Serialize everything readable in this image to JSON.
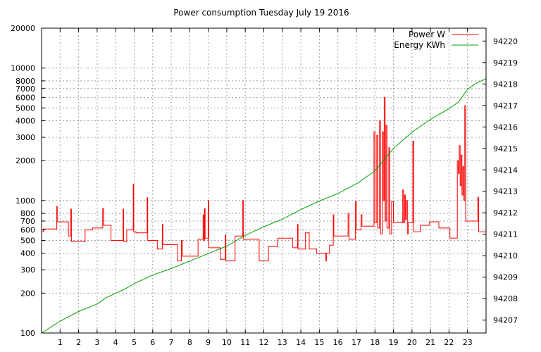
{
  "chart_data": {
    "type": "line",
    "title": "Power consumption Tuesday July 19 2016",
    "xlabel": "",
    "ylabel": "",
    "y2label": "",
    "grid": true,
    "legend_position": "top-right",
    "x_range": [
      0,
      24
    ],
    "x_ticks": [
      1,
      2,
      3,
      4,
      5,
      6,
      7,
      8,
      9,
      10,
      11,
      12,
      13,
      14,
      15,
      16,
      17,
      18,
      19,
      20,
      21,
      22,
      23
    ],
    "y_scale": "log",
    "y_range": [
      100,
      20000
    ],
    "y_ticks": [
      100,
      200,
      300,
      400,
      500,
      600,
      700,
      800,
      1000,
      2000,
      3000,
      4000,
      5000,
      6000,
      7000,
      8000,
      10000,
      20000
    ],
    "y2_range": [
      94206.4,
      94220.6
    ],
    "y2_ticks": [
      94207,
      94208,
      94209,
      94210,
      94211,
      94212,
      94213,
      94214,
      94215,
      94216,
      94217,
      94218,
      94219,
      94220
    ],
    "series": [
      {
        "name": "Power W",
        "color": "#ff0000",
        "axis": "y",
        "step": true,
        "points": [
          [
            0,
            580
          ],
          [
            0.1,
            610
          ],
          [
            0.8,
            610
          ],
          [
            0.82,
            900
          ],
          [
            0.85,
            690
          ],
          [
            1.4,
            690
          ],
          [
            1.45,
            540
          ],
          [
            1.55,
            540
          ],
          [
            1.58,
            860
          ],
          [
            1.62,
            490
          ],
          [
            2.3,
            490
          ],
          [
            2.35,
            600
          ],
          [
            2.7,
            600
          ],
          [
            2.75,
            620
          ],
          [
            3.25,
            620
          ],
          [
            3.3,
            870
          ],
          [
            3.35,
            650
          ],
          [
            3.7,
            650
          ],
          [
            3.75,
            500
          ],
          [
            4.35,
            500
          ],
          [
            4.4,
            860
          ],
          [
            4.43,
            490
          ],
          [
            4.55,
            490
          ],
          [
            4.6,
            600
          ],
          [
            4.9,
            600
          ],
          [
            4.95,
            1330
          ],
          [
            4.98,
            580
          ],
          [
            5.05,
            580
          ],
          [
            5.1,
            570
          ],
          [
            5.65,
            570
          ],
          [
            5.7,
            1050
          ],
          [
            5.73,
            500
          ],
          [
            6.2,
            500
          ],
          [
            6.25,
            430
          ],
          [
            6.5,
            430
          ],
          [
            6.52,
            660
          ],
          [
            6.55,
            465
          ],
          [
            7.3,
            465
          ],
          [
            7.35,
            350
          ],
          [
            7.5,
            350
          ],
          [
            7.55,
            500
          ],
          [
            7.6,
            380
          ],
          [
            8.4,
            380
          ],
          [
            8.45,
            510
          ],
          [
            8.7,
            510
          ],
          [
            8.72,
            780
          ],
          [
            8.75,
            500
          ],
          [
            8.8,
            870
          ],
          [
            8.83,
            520
          ],
          [
            8.9,
            520
          ],
          [
            9.0,
            1000
          ],
          [
            9.03,
            440
          ],
          [
            9.6,
            440
          ],
          [
            9.65,
            360
          ],
          [
            9.9,
            360
          ],
          [
            9.92,
            550
          ],
          [
            9.95,
            350
          ],
          [
            10.4,
            350
          ],
          [
            10.45,
            540
          ],
          [
            10.8,
            540
          ],
          [
            10.85,
            1000
          ],
          [
            10.9,
            510
          ],
          [
            11.7,
            510
          ],
          [
            11.75,
            350
          ],
          [
            12.2,
            350
          ],
          [
            12.25,
            450
          ],
          [
            12.7,
            450
          ],
          [
            12.75,
            520
          ],
          [
            13.5,
            520
          ],
          [
            13.55,
            440
          ],
          [
            13.8,
            440
          ],
          [
            13.82,
            660
          ],
          [
            13.85,
            430
          ],
          [
            14.2,
            430
          ],
          [
            14.25,
            570
          ],
          [
            14.4,
            570
          ],
          [
            14.45,
            430
          ],
          [
            14.8,
            430
          ],
          [
            14.85,
            400
          ],
          [
            15.3,
            400
          ],
          [
            15.35,
            350
          ],
          [
            15.38,
            400
          ],
          [
            15.5,
            400
          ],
          [
            15.55,
            460
          ],
          [
            15.7,
            460
          ],
          [
            15.75,
            780
          ],
          [
            15.78,
            540
          ],
          [
            16.5,
            540
          ],
          [
            16.55,
            800
          ],
          [
            16.6,
            510
          ],
          [
            16.9,
            510
          ],
          [
            16.95,
            980
          ],
          [
            17.0,
            600
          ],
          [
            17.2,
            600
          ],
          [
            17.25,
            780
          ],
          [
            17.3,
            640
          ],
          [
            17.9,
            640
          ],
          [
            17.95,
            3300
          ],
          [
            18.0,
            680
          ],
          [
            18.1,
            3100
          ],
          [
            18.15,
            620
          ],
          [
            18.25,
            4000
          ],
          [
            18.3,
            560
          ],
          [
            18.4,
            3300
          ],
          [
            18.45,
            1000
          ],
          [
            18.5,
            6000
          ],
          [
            18.55,
            700
          ],
          [
            18.6,
            3700
          ],
          [
            18.65,
            620
          ],
          [
            18.75,
            2500
          ],
          [
            18.8,
            560
          ],
          [
            18.9,
            980
          ],
          [
            19.0,
            680
          ],
          [
            19.45,
            680
          ],
          [
            19.5,
            1200
          ],
          [
            19.55,
            680
          ],
          [
            19.6,
            1100
          ],
          [
            19.65,
            720
          ],
          [
            19.7,
            1000
          ],
          [
            19.75,
            560
          ],
          [
            19.8,
            680
          ],
          [
            20.0,
            680
          ],
          [
            20.05,
            2800
          ],
          [
            20.1,
            580
          ],
          [
            20.4,
            580
          ],
          [
            20.45,
            650
          ],
          [
            20.9,
            650
          ],
          [
            20.95,
            690
          ],
          [
            21.4,
            690
          ],
          [
            21.45,
            620
          ],
          [
            22.0,
            620
          ],
          [
            22.05,
            520
          ],
          [
            22.4,
            520
          ],
          [
            22.45,
            2000
          ],
          [
            22.5,
            1600
          ],
          [
            22.55,
            2600
          ],
          [
            22.6,
            1300
          ],
          [
            22.65,
            2200
          ],
          [
            22.7,
            1100
          ],
          [
            22.75,
            1800
          ],
          [
            22.8,
            1000
          ],
          [
            22.85,
            5200
          ],
          [
            22.9,
            700
          ],
          [
            23.5,
            700
          ],
          [
            23.55,
            1050
          ],
          [
            23.6,
            580
          ],
          [
            24,
            580
          ]
        ]
      },
      {
        "name": "Energy KWh",
        "color": "#00a000",
        "axis": "y2",
        "step": false,
        "points": [
          [
            0,
            94206.4
          ],
          [
            1,
            94206.95
          ],
          [
            2,
            94207.4
          ],
          [
            3,
            94207.75
          ],
          [
            3.5,
            94208.05
          ],
          [
            4,
            94208.25
          ],
          [
            4.5,
            94208.45
          ],
          [
            5,
            94208.7
          ],
          [
            6,
            94209.1
          ],
          [
            7,
            94209.4
          ],
          [
            8,
            94209.75
          ],
          [
            9,
            94210.1
          ],
          [
            10,
            94210.45
          ],
          [
            11,
            94210.95
          ],
          [
            12,
            94211.35
          ],
          [
            13,
            94211.7
          ],
          [
            14,
            94212.15
          ],
          [
            15,
            94212.55
          ],
          [
            16,
            94212.9
          ],
          [
            17,
            94213.35
          ],
          [
            18,
            94213.95
          ],
          [
            19,
            94215.0
          ],
          [
            20,
            94215.75
          ],
          [
            21,
            94216.35
          ],
          [
            22,
            94216.85
          ],
          [
            22.5,
            94217.15
          ],
          [
            23,
            94217.75
          ],
          [
            23.5,
            94218.05
          ],
          [
            24,
            94218.25
          ]
        ]
      }
    ]
  }
}
